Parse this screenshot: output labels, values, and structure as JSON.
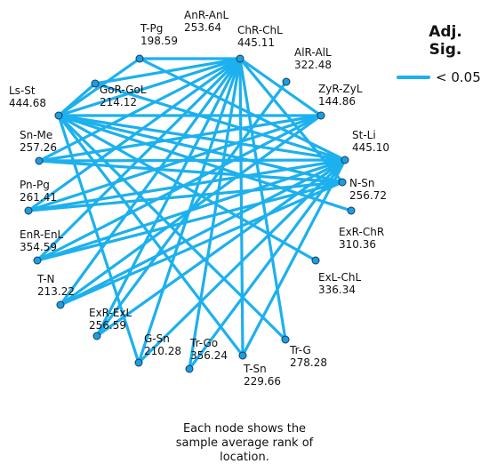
{
  "legend": {
    "title": "Adj.\nSig.",
    "item_label": "< 0.05",
    "line_color": "#1cb0ee"
  },
  "colors": {
    "edge": "#1cb0ee",
    "node_fill": "#1a9ee0",
    "node_stroke": "#1a3a5a"
  },
  "nodes": [
    {
      "id": "anr-anl",
      "name": "AnR-AnL",
      "rank": "253.64"
    },
    {
      "id": "chr-chl",
      "name": "ChR-ChL",
      "rank": "445.11"
    },
    {
      "id": "t-pg",
      "name": "T-Pg",
      "rank": "198.59"
    },
    {
      "id": "alr-all",
      "name": "AlR-AlL",
      "rank": "322.48"
    },
    {
      "id": "gor-gol",
      "name": "GoR-GoL",
      "rank": "214.12"
    },
    {
      "id": "zyr-zyl",
      "name": "ZyR-ZyL",
      "rank": "144.86"
    },
    {
      "id": "ls-st",
      "name": "Ls-St",
      "rank": "444.68"
    },
    {
      "id": "st-li",
      "name": "St-Li",
      "rank": "445.10"
    },
    {
      "id": "sn-me",
      "name": "Sn-Me",
      "rank": "257.26"
    },
    {
      "id": "n-sn",
      "name": "N-Sn",
      "rank": "256.72"
    },
    {
      "id": "pn-pg",
      "name": "Pn-Pg",
      "rank": "261.41"
    },
    {
      "id": "exr-chr",
      "name": "ExR-ChR",
      "rank": "310.36"
    },
    {
      "id": "enr-enl",
      "name": "EnR-EnL",
      "rank": "354.59"
    },
    {
      "id": "exl-chl",
      "name": "ExL-ChL",
      "rank": "336.34"
    },
    {
      "id": "t-n",
      "name": "T-N",
      "rank": "213.22"
    },
    {
      "id": "exr-exl",
      "name": "ExR-ExL",
      "rank": "256.59"
    },
    {
      "id": "g-sn",
      "name": "G-Sn",
      "rank": "210.28"
    },
    {
      "id": "tr-go",
      "name": "Tr-Go",
      "rank": "356.24"
    },
    {
      "id": "t-sn",
      "name": "T-Sn",
      "rank": "229.66"
    },
    {
      "id": "tr-g",
      "name": "Tr-G",
      "rank": "278.28"
    }
  ],
  "edges": [
    [
      "chr-chl",
      "ls-st"
    ],
    [
      "chr-chl",
      "t-pg"
    ],
    [
      "chr-chl",
      "gor-gol"
    ],
    [
      "chr-chl",
      "sn-me"
    ],
    [
      "chr-chl",
      "pn-pg"
    ],
    [
      "chr-chl",
      "enr-enl"
    ],
    [
      "chr-chl",
      "t-n"
    ],
    [
      "chr-chl",
      "exr-exl"
    ],
    [
      "chr-chl",
      "g-sn"
    ],
    [
      "chr-chl",
      "tr-go"
    ],
    [
      "chr-chl",
      "t-sn"
    ],
    [
      "chr-chl",
      "tr-g"
    ],
    [
      "chr-chl",
      "zyr-zyl"
    ],
    [
      "chr-chl",
      "n-sn"
    ],
    [
      "ls-st",
      "zyr-zyl"
    ],
    [
      "ls-st",
      "st-li"
    ],
    [
      "ls-st",
      "t-pg"
    ],
    [
      "ls-st",
      "gor-gol"
    ],
    [
      "ls-st",
      "n-sn"
    ],
    [
      "ls-st",
      "exr-chr"
    ],
    [
      "ls-st",
      "exl-chl"
    ],
    [
      "ls-st",
      "tr-g"
    ],
    [
      "ls-st",
      "t-sn"
    ],
    [
      "ls-st",
      "g-sn"
    ],
    [
      "st-li",
      "t-pg"
    ],
    [
      "st-li",
      "gor-gol"
    ],
    [
      "st-li",
      "sn-me"
    ],
    [
      "st-li",
      "pn-pg"
    ],
    [
      "st-li",
      "enr-enl"
    ],
    [
      "st-li",
      "t-n"
    ],
    [
      "st-li",
      "exr-exl"
    ],
    [
      "st-li",
      "g-sn"
    ],
    [
      "st-li",
      "tr-go"
    ],
    [
      "st-li",
      "t-sn"
    ],
    [
      "zyr-zyl",
      "sn-me"
    ],
    [
      "zyr-zyl",
      "pn-pg"
    ],
    [
      "zyr-zyl",
      "enr-enl"
    ],
    [
      "zyr-zyl",
      "t-n"
    ],
    [
      "alr-all",
      "exr-exl"
    ],
    [
      "n-sn",
      "sn-me"
    ],
    [
      "n-sn",
      "pn-pg"
    ],
    [
      "n-sn",
      "enr-enl"
    ],
    [
      "n-sn",
      "t-n"
    ]
  ],
  "caption": [
    "Each node shows the",
    "sample average rank of",
    "location."
  ]
}
